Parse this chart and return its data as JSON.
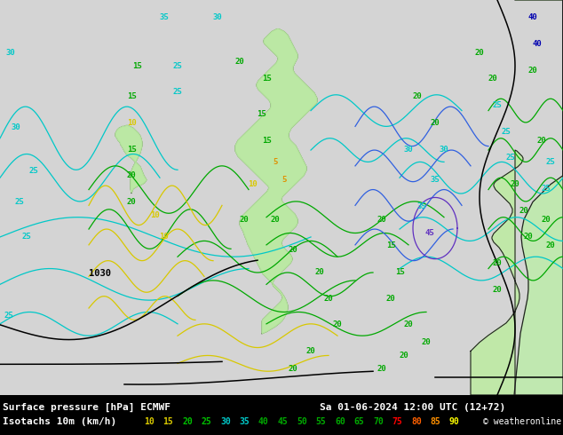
{
  "bg_color": "#d8d8d8",
  "sea_color": "#d8d8d8",
  "land_fill_light": "#d8f0c8",
  "land_fill_medium": "#b8e8a0",
  "land_fill_dark": "#90d870",
  "coastline_color": "#202020",
  "isobar_color": "#000000",
  "isotach_cyan": "#00c8c8",
  "isotach_green": "#00a800",
  "isotach_yellow": "#d8c800",
  "isotach_orange": "#e09000",
  "isotach_blue": "#3060e0",
  "isotach_purple": "#6030c0",
  "isotach_darkblue": "#0000b0",
  "bar_bg": "#000000",
  "title_line1": "Surface pressure [hPa] ECMWF",
  "title_line2": "Sa 01-06-2024 12:00 UTC (12+72)",
  "title_line3": "Isotachs 10m (km/h)",
  "copyright": "© weatheronline.co.uk",
  "isotach_values": [
    10,
    15,
    20,
    25,
    30,
    35,
    40,
    45,
    50,
    55,
    60,
    65,
    70,
    75,
    80,
    85,
    90
  ],
  "legend_colors": [
    "#d8c800",
    "#d8c800",
    "#00c000",
    "#00c000",
    "#00c8c8",
    "#00c8c8",
    "#00a800",
    "#00a800",
    "#00a800",
    "#00a800",
    "#00a800",
    "#00a800",
    "#00a800",
    "#ff0000",
    "#ff6000",
    "#ff9000",
    "#ffff00"
  ]
}
